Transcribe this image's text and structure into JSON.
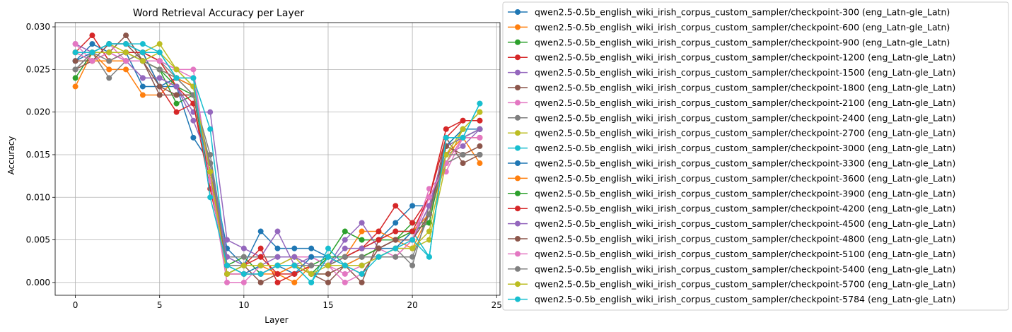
{
  "chart_data": {
    "type": "line",
    "title": "Word Retrieval Accuracy per Layer",
    "xlabel": "Layer",
    "ylabel": "Accuracy",
    "xlim": [
      -1.2,
      25.2
    ],
    "ylim": [
      -0.0015,
      0.0305
    ],
    "xticks": [
      0,
      5,
      10,
      15,
      20,
      25
    ],
    "xtick_labels": [
      "0",
      "5",
      "10",
      "15",
      "20",
      "25"
    ],
    "yticks": [
      0,
      0.005,
      0.01,
      0.015,
      0.02,
      0.025,
      0.03
    ],
    "ytick_labels": [
      "0.000",
      "0.005",
      "0.010",
      "0.015",
      "0.020",
      "0.025",
      "0.030"
    ],
    "grid": true,
    "legend_position": "outside right",
    "x": [
      0,
      1,
      2,
      3,
      4,
      5,
      6,
      7,
      8,
      9,
      10,
      11,
      12,
      13,
      14,
      15,
      16,
      17,
      18,
      19,
      20,
      21,
      22,
      23,
      24
    ],
    "series": [
      {
        "name": "qwen2.5-0.5b_english_wiki_irish_corpus_custom_sampler/checkpoint-300 (eng_Latn-gle_Latn)",
        "color": "#1f77b4",
        "values": [
          0.026,
          0.028,
          0.027,
          0.027,
          0.023,
          0.023,
          0.023,
          0.017,
          0.014,
          0.004,
          0.002,
          0.006,
          0.004,
          0.004,
          0.004,
          0.003,
          0.003,
          0.004,
          0.005,
          0.007,
          0.009,
          0.009,
          0.016,
          0.017,
          0.018
        ]
      },
      {
        "name": "qwen2.5-0.5b_english_wiki_irish_corpus_custom_sampler/checkpoint-600 (eng_Latn-gle_Latn)",
        "color": "#ff7f0e",
        "values": [
          0.023,
          0.027,
          0.025,
          0.025,
          0.022,
          0.022,
          0.024,
          0.023,
          0.013,
          0.001,
          0.001,
          0.001,
          0.001,
          0.0,
          0.002,
          0.002,
          0.003,
          0.006,
          0.006,
          0.005,
          0.004,
          0.008,
          0.014,
          0.017,
          0.014
        ]
      },
      {
        "name": "qwen2.5-0.5b_english_wiki_irish_corpus_custom_sampler/checkpoint-900 (eng_Latn-gle_Latn)",
        "color": "#2ca02c",
        "values": [
          0.024,
          0.027,
          0.027,
          0.027,
          0.026,
          0.025,
          0.021,
          0.022,
          0.013,
          0.002,
          0.003,
          0.001,
          0.002,
          0.002,
          0.002,
          0.003,
          0.006,
          0.005,
          0.005,
          0.005,
          0.007,
          0.007,
          0.016,
          0.018,
          0.018
        ]
      },
      {
        "name": "qwen2.5-0.5b_english_wiki_irish_corpus_custom_sampler/checkpoint-1200 (eng_Latn-gle_Latn)",
        "color": "#d62728",
        "values": [
          0.027,
          0.029,
          0.026,
          0.027,
          0.027,
          0.023,
          0.02,
          0.021,
          0.011,
          0.002,
          0.002,
          0.004,
          0.0,
          0.001,
          0.002,
          0.002,
          0.003,
          0.004,
          0.006,
          0.009,
          0.007,
          0.01,
          0.018,
          0.019,
          0.019
        ]
      },
      {
        "name": "qwen2.5-0.5b_english_wiki_irish_corpus_custom_sampler/checkpoint-1500 (eng_Latn-gle_Latn)",
        "color": "#9467bd",
        "values": [
          0.028,
          0.027,
          0.027,
          0.026,
          0.024,
          0.024,
          0.023,
          0.02,
          0.02,
          0.005,
          0.004,
          0.003,
          0.006,
          0.002,
          0.003,
          0.002,
          0.005,
          0.007,
          0.004,
          0.005,
          0.005,
          0.009,
          0.015,
          0.016,
          0.018
        ]
      },
      {
        "name": "qwen2.5-0.5b_english_wiki_irish_corpus_custom_sampler/checkpoint-1800 (eng_Latn-gle_Latn)",
        "color": "#8c564b",
        "values": [
          0.025,
          0.026,
          0.027,
          0.029,
          0.026,
          0.022,
          0.022,
          0.022,
          0.014,
          0.001,
          0.002,
          0.0,
          0.001,
          0.002,
          0.001,
          0.0,
          0.002,
          0.0,
          0.005,
          0.006,
          0.006,
          0.008,
          0.017,
          0.014,
          0.015
        ]
      },
      {
        "name": "qwen2.5-0.5b_english_wiki_irish_corpus_custom_sampler/checkpoint-2100 (eng_Latn-gle_Latn)",
        "color": "#e377c2",
        "values": [
          0.028,
          0.026,
          0.028,
          0.026,
          0.027,
          0.026,
          0.025,
          0.025,
          0.012,
          0.0,
          0.0,
          0.002,
          0.002,
          0.003,
          0.003,
          0.002,
          0.0,
          0.001,
          0.004,
          0.003,
          0.005,
          0.011,
          0.013,
          0.017,
          0.017
        ]
      },
      {
        "name": "qwen2.5-0.5b_english_wiki_irish_corpus_custom_sampler/checkpoint-2400 (eng_Latn-gle_Latn)",
        "color": "#7f7f7f",
        "values": [
          0.025,
          0.027,
          0.024,
          0.026,
          0.027,
          0.026,
          0.024,
          0.022,
          0.015,
          0.003,
          0.003,
          0.003,
          0.003,
          0.003,
          0.002,
          0.002,
          0.003,
          0.003,
          0.003,
          0.004,
          0.002,
          0.009,
          0.014,
          0.015,
          0.015
        ]
      },
      {
        "name": "qwen2.5-0.5b_english_wiki_irish_corpus_custom_sampler/checkpoint-2700 (eng_Latn-gle_Latn)",
        "color": "#bcbd22",
        "values": [
          0.027,
          0.027,
          0.028,
          0.027,
          0.027,
          0.028,
          0.025,
          0.023,
          0.013,
          0.001,
          0.002,
          0.002,
          0.002,
          0.003,
          0.001,
          0.001,
          0.002,
          0.002,
          0.003,
          0.004,
          0.004,
          0.005,
          0.014,
          0.018,
          0.02
        ]
      },
      {
        "name": "qwen2.5-0.5b_english_wiki_irish_corpus_custom_sampler/checkpoint-3000 (eng_Latn-gle_Latn)",
        "color": "#17becf",
        "values": [
          0.027,
          0.027,
          0.028,
          0.028,
          0.028,
          0.027,
          0.024,
          0.024,
          0.018,
          0.002,
          0.001,
          0.001,
          0.002,
          0.002,
          0.0,
          0.004,
          0.002,
          0.002,
          0.003,
          0.004,
          0.006,
          0.003,
          0.017,
          0.017,
          0.021
        ]
      },
      {
        "name": "qwen2.5-0.5b_english_wiki_irish_corpus_custom_sampler/checkpoint-3300 (eng_Latn-gle_Latn)",
        "color": "#1f77b4",
        "values": [
          0.026,
          0.027,
          0.028,
          0.028,
          0.027,
          0.023,
          0.024,
          0.023,
          0.013,
          0.002,
          0.001,
          0.002,
          0.002,
          0.001,
          0.003,
          0.003,
          0.002,
          0.003,
          0.004,
          0.004,
          0.006,
          0.008,
          0.016,
          0.018,
          0.018
        ]
      },
      {
        "name": "qwen2.5-0.5b_english_wiki_irish_corpus_custom_sampler/checkpoint-3600 (eng_Latn-gle_Latn)",
        "color": "#ff7f0e",
        "values": [
          0.027,
          0.026,
          0.026,
          0.026,
          0.026,
          0.025,
          0.024,
          0.023,
          0.013,
          0.002,
          0.002,
          0.002,
          0.001,
          0.002,
          0.002,
          0.002,
          0.002,
          0.003,
          0.004,
          0.005,
          0.006,
          0.008,
          0.015,
          0.017,
          0.017
        ]
      },
      {
        "name": "qwen2.5-0.5b_english_wiki_irish_corpus_custom_sampler/checkpoint-3900 (eng_Latn-gle_Latn)",
        "color": "#2ca02c",
        "values": [
          0.027,
          0.027,
          0.027,
          0.027,
          0.026,
          0.025,
          0.023,
          0.022,
          0.012,
          0.001,
          0.002,
          0.002,
          0.002,
          0.002,
          0.001,
          0.003,
          0.003,
          0.003,
          0.004,
          0.005,
          0.006,
          0.007,
          0.016,
          0.017,
          0.018
        ]
      },
      {
        "name": "qwen2.5-0.5b_english_wiki_irish_corpus_custom_sampler/checkpoint-4200 (eng_Latn-gle_Latn)",
        "color": "#d62728",
        "values": [
          0.027,
          0.027,
          0.027,
          0.027,
          0.027,
          0.026,
          0.023,
          0.021,
          0.012,
          0.002,
          0.002,
          0.003,
          0.001,
          0.001,
          0.002,
          0.002,
          0.003,
          0.004,
          0.005,
          0.006,
          0.006,
          0.01,
          0.017,
          0.019,
          0.019
        ]
      },
      {
        "name": "qwen2.5-0.5b_english_wiki_irish_corpus_custom_sampler/checkpoint-4500 (eng_Latn-gle_Latn)",
        "color": "#9467bd",
        "values": [
          0.027,
          0.027,
          0.027,
          0.026,
          0.024,
          0.024,
          0.023,
          0.019,
          0.014,
          0.003,
          0.002,
          0.002,
          0.003,
          0.003,
          0.002,
          0.002,
          0.004,
          0.004,
          0.004,
          0.005,
          0.005,
          0.009,
          0.016,
          0.017,
          0.018
        ]
      },
      {
        "name": "qwen2.5-0.5b_english_wiki_irish_corpus_custom_sampler/checkpoint-4800 (eng_Latn-gle_Latn)",
        "color": "#8c564b",
        "values": [
          0.026,
          0.026,
          0.028,
          0.028,
          0.026,
          0.023,
          0.022,
          0.022,
          0.013,
          0.001,
          0.001,
          0.001,
          0.002,
          0.002,
          0.001,
          0.001,
          0.002,
          0.001,
          0.004,
          0.005,
          0.005,
          0.008,
          0.016,
          0.015,
          0.016
        ]
      },
      {
        "name": "qwen2.5-0.5b_english_wiki_irish_corpus_custom_sampler/checkpoint-5100 (eng_Latn-gle_Latn)",
        "color": "#e377c2",
        "values": [
          0.027,
          0.026,
          0.027,
          0.026,
          0.026,
          0.026,
          0.025,
          0.024,
          0.012,
          0.001,
          0.001,
          0.001,
          0.002,
          0.002,
          0.002,
          0.002,
          0.001,
          0.002,
          0.003,
          0.003,
          0.005,
          0.01,
          0.014,
          0.017,
          0.017
        ]
      },
      {
        "name": "qwen2.5-0.5b_english_wiki_irish_corpus_custom_sampler/checkpoint-5400 (eng_Latn-gle_Latn)",
        "color": "#7f7f7f",
        "values": [
          0.025,
          0.027,
          0.026,
          0.027,
          0.026,
          0.025,
          0.024,
          0.022,
          0.014,
          0.002,
          0.002,
          0.002,
          0.002,
          0.002,
          0.002,
          0.002,
          0.003,
          0.003,
          0.003,
          0.003,
          0.003,
          0.008,
          0.015,
          0.015,
          0.015
        ]
      },
      {
        "name": "qwen2.5-0.5b_english_wiki_irish_corpus_custom_sampler/checkpoint-5700 (eng_Latn-gle_Latn)",
        "color": "#bcbd22",
        "values": [
          0.027,
          0.027,
          0.027,
          0.027,
          0.026,
          0.027,
          0.025,
          0.023,
          0.013,
          0.001,
          0.002,
          0.002,
          0.002,
          0.002,
          0.001,
          0.002,
          0.002,
          0.002,
          0.003,
          0.004,
          0.004,
          0.006,
          0.015,
          0.018,
          0.02
        ]
      },
      {
        "name": "qwen2.5-0.5b_english_wiki_irish_corpus_custom_sampler/checkpoint-5784 (eng_Latn-gle_Latn)",
        "color": "#17becf",
        "values": [
          0.027,
          0.027,
          0.028,
          0.028,
          0.027,
          0.027,
          0.024,
          0.024,
          0.01,
          0.002,
          0.001,
          0.001,
          0.002,
          0.002,
          0.0,
          0.003,
          0.002,
          0.001,
          0.003,
          0.004,
          0.005,
          0.003,
          0.017,
          0.017,
          0.021
        ]
      }
    ]
  }
}
